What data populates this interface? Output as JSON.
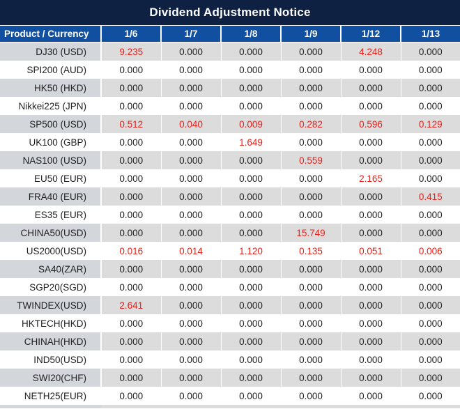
{
  "title": "Dividend Adjustment Notice",
  "colors": {
    "title_bg": "#0e2142",
    "header_bg": "#1150a0",
    "header_text": "#ffffff",
    "row_gray_label": "#d3d6db",
    "row_gray_value": "#dcdcdd",
    "row_white": "#ffffff",
    "text": "#1f1f1f",
    "red": "#e8201a"
  },
  "chart_data": {
    "type": "table",
    "title": "Dividend Adjustment Notice",
    "columns": [
      "Product / Currency",
      "1/6",
      "1/7",
      "1/8",
      "1/9",
      "1/12",
      "1/13"
    ],
    "highlight_rule": "non-zero values rendered in red",
    "rows": [
      {
        "product": "DJ30 (USD)",
        "values": [
          "9.235",
          "0.000",
          "0.000",
          "0.000",
          "4.248",
          "0.000"
        ]
      },
      {
        "product": "SPI200 (AUD)",
        "values": [
          "0.000",
          "0.000",
          "0.000",
          "0.000",
          "0.000",
          "0.000"
        ]
      },
      {
        "product": "HK50 (HKD)",
        "values": [
          "0.000",
          "0.000",
          "0.000",
          "0.000",
          "0.000",
          "0.000"
        ]
      },
      {
        "product": "Nikkei225 (JPN)",
        "values": [
          "0.000",
          "0.000",
          "0.000",
          "0.000",
          "0.000",
          "0.000"
        ]
      },
      {
        "product": "SP500 (USD)",
        "values": [
          "0.512",
          "0.040",
          "0.009",
          "0.282",
          "0.596",
          "0.129"
        ]
      },
      {
        "product": "UK100 (GBP)",
        "values": [
          "0.000",
          "0.000",
          "1.649",
          "0.000",
          "0.000",
          "0.000"
        ]
      },
      {
        "product": "NAS100 (USD)",
        "values": [
          "0.000",
          "0.000",
          "0.000",
          "0.559",
          "0.000",
          "0.000"
        ]
      },
      {
        "product": "EU50 (EUR)",
        "values": [
          "0.000",
          "0.000",
          "0.000",
          "0.000",
          "2.165",
          "0.000"
        ]
      },
      {
        "product": "FRA40 (EUR)",
        "values": [
          "0.000",
          "0.000",
          "0.000",
          "0.000",
          "0.000",
          "0.415"
        ]
      },
      {
        "product": "ES35 (EUR)",
        "values": [
          "0.000",
          "0.000",
          "0.000",
          "0.000",
          "0.000",
          "0.000"
        ]
      },
      {
        "product": "CHINA50(USD)",
        "values": [
          "0.000",
          "0.000",
          "0.000",
          "15.749",
          "0.000",
          "0.000"
        ]
      },
      {
        "product": "US2000(USD)",
        "values": [
          "0.016",
          "0.014",
          "1.120",
          "0.135",
          "0.051",
          "0.006"
        ]
      },
      {
        "product": "SA40(ZAR)",
        "values": [
          "0.000",
          "0.000",
          "0.000",
          "0.000",
          "0.000",
          "0.000"
        ]
      },
      {
        "product": "SGP20(SGD)",
        "values": [
          "0.000",
          "0.000",
          "0.000",
          "0.000",
          "0.000",
          "0.000"
        ]
      },
      {
        "product": "TWINDEX(USD)",
        "values": [
          "2.641",
          "0.000",
          "0.000",
          "0.000",
          "0.000",
          "0.000"
        ]
      },
      {
        "product": "HKTECH(HKD)",
        "values": [
          "0.000",
          "0.000",
          "0.000",
          "0.000",
          "0.000",
          "0.000"
        ]
      },
      {
        "product": "CHINAH(HKD)",
        "values": [
          "0.000",
          "0.000",
          "0.000",
          "0.000",
          "0.000",
          "0.000"
        ]
      },
      {
        "product": "IND50(USD)",
        "values": [
          "0.000",
          "0.000",
          "0.000",
          "0.000",
          "0.000",
          "0.000"
        ]
      },
      {
        "product": "SWI20(CHF)",
        "values": [
          "0.000",
          "0.000",
          "0.000",
          "0.000",
          "0.000",
          "0.000"
        ]
      },
      {
        "product": "NETH25(EUR)",
        "values": [
          "0.000",
          "0.000",
          "0.000",
          "0.000",
          "0.000",
          "0.000"
        ]
      }
    ]
  }
}
